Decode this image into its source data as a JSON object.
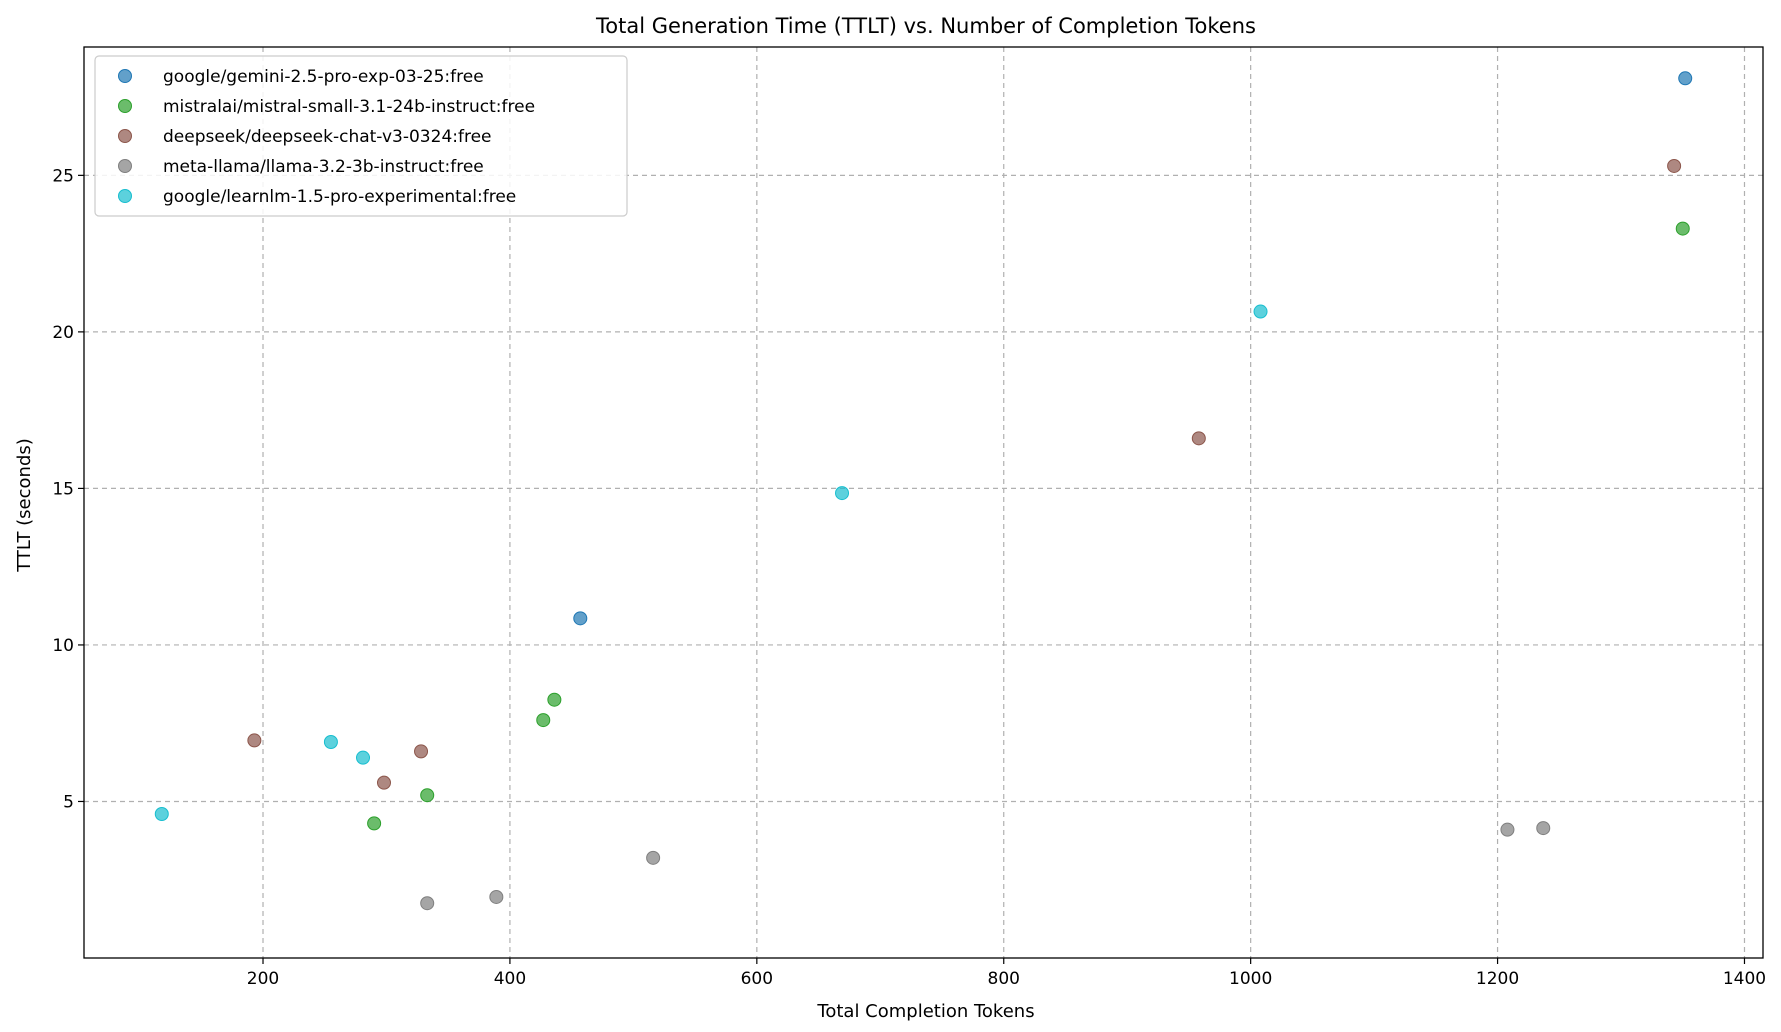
{
  "chart_data": {
    "type": "scatter",
    "title": "Total Generation Time (TTLT) vs. Number of Completion Tokens",
    "xlabel": "Total Completion Tokens",
    "ylabel": "TTLT (seconds)",
    "xlim": [
      55,
      1415
    ],
    "ylim": [
      0.0,
      29.1
    ],
    "xticks": [
      200,
      400,
      600,
      800,
      1000,
      1200,
      1400
    ],
    "yticks": [
      5,
      10,
      15,
      20,
      25
    ],
    "grid": true,
    "legend_position": "top-left",
    "series": [
      {
        "name": "google/gemini-2.5-pro-exp-03-25:free",
        "color": "#1f77b4",
        "points": [
          [
            457,
            10.85
          ],
          [
            1352,
            28.1
          ]
        ]
      },
      {
        "name": "mistralai/mistral-small-3.1-24b-instruct:free",
        "color": "#2ca02c",
        "points": [
          [
            290,
            4.3
          ],
          [
            333,
            5.2
          ],
          [
            427,
            7.6
          ],
          [
            436,
            8.25
          ],
          [
            1350,
            23.3
          ]
        ]
      },
      {
        "name": "deepseek/deepseek-chat-v3-0324:free",
        "color": "#8c564b",
        "points": [
          [
            193,
            6.95
          ],
          [
            298,
            5.6
          ],
          [
            328,
            6.6
          ],
          [
            958,
            16.6
          ],
          [
            1343,
            25.3
          ]
        ]
      },
      {
        "name": "meta-llama/llama-3.2-3b-instruct:free",
        "color": "#7f7f7f",
        "points": [
          [
            333,
            1.75
          ],
          [
            389,
            1.95
          ],
          [
            516,
            3.2
          ],
          [
            1208,
            4.1
          ],
          [
            1237,
            4.15
          ]
        ]
      },
      {
        "name": "google/learnlm-1.5-pro-experimental:free",
        "color": "#17becf",
        "points": [
          [
            118,
            4.6
          ],
          [
            255,
            6.9
          ],
          [
            281,
            6.4
          ],
          [
            669,
            14.85
          ],
          [
            1008,
            20.65
          ]
        ]
      }
    ]
  }
}
